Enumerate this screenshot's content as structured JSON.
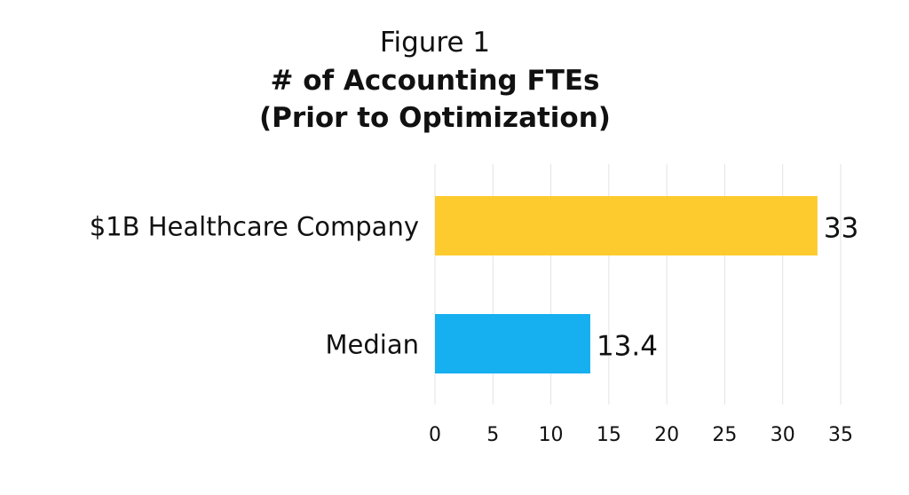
{
  "chart_data": {
    "type": "bar",
    "orientation": "horizontal",
    "figure_label": "Figure 1",
    "title": "# of Accounting FTEs",
    "subtitle": "(Prior to Optimization)",
    "categories": [
      "$1B Healthcare Company",
      "Median"
    ],
    "values": [
      33,
      13.4
    ],
    "data_labels": [
      "33",
      "13.4"
    ],
    "colors": [
      "#FDCB2E",
      "#16AFEF"
    ],
    "xlim": [
      0,
      35
    ],
    "xticks": [
      "0",
      "5",
      "10",
      "15",
      "20",
      "25",
      "30",
      "35"
    ],
    "grid": true,
    "xlabel": "",
    "ylabel": ""
  }
}
